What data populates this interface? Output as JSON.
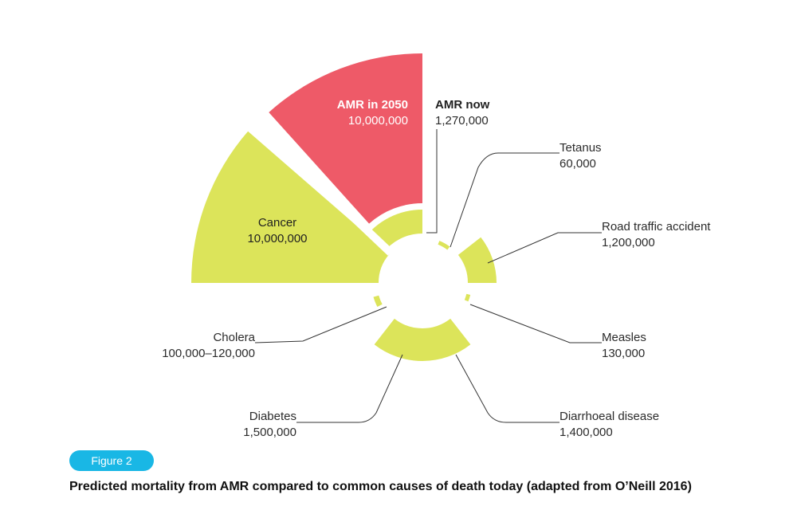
{
  "colors": {
    "amr": "#ee5a68",
    "other": "#dce45a",
    "badge": "#19b7e5"
  },
  "chart_data": {
    "type": "pie",
    "title": "",
    "segments": [
      {
        "label": "AMR in 2050",
        "value_text": "10,000,000",
        "value": 10000000,
        "color": "#ee5a68"
      },
      {
        "label": "AMR now",
        "value_text": "1,270,000",
        "value": 1270000,
        "color": "#dce45a"
      },
      {
        "label": "Tetanus",
        "value_text": "60,000",
        "value": 60000,
        "color": "#dce45a"
      },
      {
        "label": "Road traffic accident",
        "value_text": "1,200,000",
        "value": 1200000,
        "color": "#dce45a"
      },
      {
        "label": "Measles",
        "value_text": "130,000",
        "value": 130000,
        "color": "#dce45a"
      },
      {
        "label": "Diarrhoeal disease",
        "value_text": "1,400,000",
        "value": 1400000,
        "color": "#dce45a"
      },
      {
        "label": "Diabetes",
        "value_text": "1,500,000",
        "value": 1500000,
        "color": "#dce45a"
      },
      {
        "label": "Cholera",
        "value_text": "100,000–120,000",
        "value": 110000,
        "color": "#dce45a"
      },
      {
        "label": "Cancer",
        "value_text": "10,000,000",
        "value": 10000000,
        "color": "#dce45a"
      }
    ]
  },
  "figure": {
    "badge": "Figure 2",
    "caption": "Predicted mortality from AMR compared to common causes of death today (adapted from O’Neill 2016)"
  }
}
